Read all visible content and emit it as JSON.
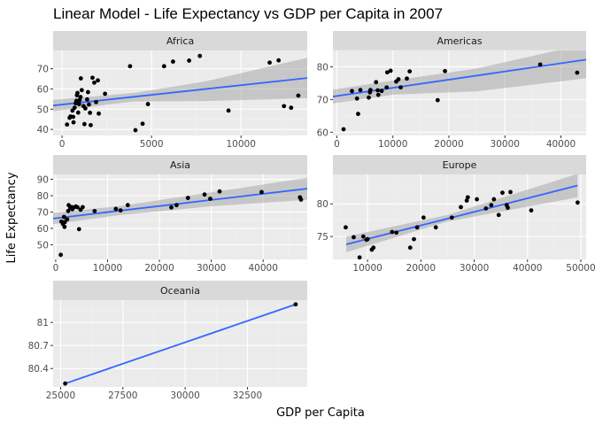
{
  "title": "Linear Model - Life Expectancy vs GDP per Capita in 2007",
  "colors": {
    "panel_bg": "#ebebeb",
    "strip_bg": "#d9d9d9",
    "grid_major": "#ffffff",
    "grid_minor": "#f2f2f2",
    "points": "#000000",
    "fit_line": "#3366ff",
    "ci_band": "#999999"
  },
  "chart_data": [
    {
      "type": "scatter",
      "facet": "Africa",
      "xlabel": "GDP per Capita",
      "ylabel": "Life Expectancy",
      "xlim": [
        -500,
        13700
      ],
      "ylim": [
        37,
        79
      ],
      "xticks": [
        0,
        5000,
        10000
      ],
      "yticks": [
        40,
        50,
        60,
        70
      ],
      "points": [
        [
          277,
          42.4
        ],
        [
          470,
          46.4
        ],
        [
          420,
          45.7
        ],
        [
          580,
          49.3
        ],
        [
          620,
          46.2
        ],
        [
          640,
          43.5
        ],
        [
          700,
          50.7
        ],
        [
          760,
          52.9
        ],
        [
          800,
          54.1
        ],
        [
          830,
          56.9
        ],
        [
          860,
          58.0
        ],
        [
          900,
          48.3
        ],
        [
          950,
          52.5
        ],
        [
          980,
          54.5
        ],
        [
          1030,
          56.0
        ],
        [
          1050,
          65.2
        ],
        [
          1100,
          59.4
        ],
        [
          1200,
          51.5
        ],
        [
          1250,
          42.6
        ],
        [
          1300,
          50.4
        ],
        [
          1400,
          54.8
        ],
        [
          1450,
          58.4
        ],
        [
          1500,
          52.3
        ],
        [
          1560,
          48.2
        ],
        [
          1600,
          42.1
        ],
        [
          1700,
          65.5
        ],
        [
          1800,
          63.1
        ],
        [
          1900,
          53.5
        ],
        [
          2000,
          64.2
        ],
        [
          2050,
          47.8
        ],
        [
          2400,
          57.6
        ],
        [
          3800,
          71.2
        ],
        [
          4100,
          39.6
        ],
        [
          4500,
          42.8
        ],
        [
          4800,
          52.5
        ],
        [
          5700,
          71.2
        ],
        [
          6200,
          73.5
        ],
        [
          7100,
          74.0
        ],
        [
          7700,
          76.3
        ],
        [
          9300,
          49.3
        ],
        [
          11600,
          73.0
        ],
        [
          12100,
          74.1
        ],
        [
          12400,
          51.5
        ],
        [
          12800,
          50.7
        ],
        [
          13200,
          56.7
        ]
      ],
      "fit": {
        "x": [
          -500,
          13700
        ],
        "y": [
          51.8,
          65.4
        ]
      },
      "ci": {
        "x": [
          -500,
          4000,
          8000,
          13700
        ],
        "lower": [
          49.0,
          53.8,
          54.0,
          55.4
        ],
        "upper": [
          54.6,
          58.0,
          63.7,
          75.4
        ]
      }
    },
    {
      "type": "scatter",
      "facet": "Americas",
      "xlabel": "GDP per Capita",
      "ylabel": "Life Expectancy",
      "xlim": [
        -700,
        44500
      ],
      "ylim": [
        59,
        85
      ],
      "xticks": [
        0,
        10000,
        20000,
        30000,
        40000
      ],
      "yticks": [
        60,
        70,
        80
      ],
      "points": [
        [
          1200,
          60.9
        ],
        [
          2700,
          72.6
        ],
        [
          3600,
          70.3
        ],
        [
          3800,
          65.6
        ],
        [
          4200,
          72.9
        ],
        [
          5700,
          70.6
        ],
        [
          5900,
          72.2
        ],
        [
          6000,
          72.9
        ],
        [
          7000,
          75.3
        ],
        [
          7300,
          72.8
        ],
        [
          7400,
          71.4
        ],
        [
          8000,
          72.6
        ],
        [
          8900,
          73.7
        ],
        [
          9000,
          78.3
        ],
        [
          9600,
          78.8
        ],
        [
          10600,
          75.5
        ],
        [
          11000,
          76.2
        ],
        [
          11400,
          73.7
        ],
        [
          12500,
          76.4
        ],
        [
          13000,
          78.6
        ],
        [
          18000,
          69.8
        ],
        [
          19300,
          78.7
        ],
        [
          36300,
          80.7
        ],
        [
          42900,
          78.2
        ]
      ],
      "fit": {
        "x": [
          -700,
          44500
        ],
        "y": [
          70.9,
          82.2
        ]
      },
      "ci": {
        "x": [
          -700,
          10000,
          25000,
          44500
        ],
        "lower": [
          68.8,
          71.5,
          72.5,
          76.5
        ],
        "upper": [
          73.0,
          75.8,
          79.5,
          87.0
        ]
      }
    },
    {
      "type": "scatter",
      "facet": "Asia",
      "xlabel": "GDP per Capita",
      "ylabel": "Life Expectancy",
      "xlim": [
        -500,
        48500
      ],
      "ylim": [
        41,
        93
      ],
      "xticks": [
        0,
        10000,
        20000,
        30000,
        40000
      ],
      "yticks": [
        50,
        60,
        70,
        80,
        90
      ],
      "points": [
        [
          975,
          43.8
        ],
        [
          1100,
          64.1
        ],
        [
          1400,
          62.7
        ],
        [
          1600,
          67.0
        ],
        [
          1700,
          60.9
        ],
        [
          1750,
          63.8
        ],
        [
          2200,
          65.5
        ],
        [
          2400,
          70.6
        ],
        [
          2500,
          74.2
        ],
        [
          2800,
          72.4
        ],
        [
          3100,
          73.0
        ],
        [
          3200,
          71.7
        ],
        [
          3500,
          72.8
        ],
        [
          3900,
          73.4
        ],
        [
          4200,
          72.9
        ],
        [
          4500,
          59.5
        ],
        [
          4800,
          71.4
        ],
        [
          5200,
          73.0
        ],
        [
          7500,
          70.6
        ],
        [
          11600,
          71.9
        ],
        [
          12500,
          71.0
        ],
        [
          13900,
          74.2
        ],
        [
          22300,
          72.8
        ],
        [
          23300,
          74.2
        ],
        [
          25500,
          78.6
        ],
        [
          28700,
          80.7
        ],
        [
          31600,
          82.6
        ],
        [
          29800,
          78.1
        ],
        [
          39700,
          82.2
        ],
        [
          47100,
          79.0
        ],
        [
          47300,
          77.6
        ]
      ],
      "fit": {
        "x": [
          -500,
          48500
        ],
        "y": [
          66.0,
          84.3
        ]
      },
      "ci": {
        "x": [
          -500,
          12000,
          30000,
          48500
        ],
        "lower": [
          62.5,
          68.0,
          73.5,
          77.5
        ],
        "upper": [
          69.5,
          73.5,
          82.0,
          91.0
        ]
      }
    },
    {
      "type": "scatter",
      "facet": "Europe",
      "xlabel": "GDP per Capita",
      "ylabel": "Life Expectancy",
      "xlim": [
        3500,
        51000
      ],
      "ylim": [
        71.5,
        84.5
      ],
      "xticks": [
        10000,
        20000,
        30000,
        40000,
        50000
      ],
      "yticks": [
        75,
        80
      ],
      "points": [
        [
          5900,
          76.4
        ],
        [
          7400,
          74.9
        ],
        [
          8500,
          71.8
        ],
        [
          9200,
          75.0
        ],
        [
          9800,
          74.5
        ],
        [
          10000,
          74.6
        ],
        [
          10800,
          73.0
        ],
        [
          11100,
          73.3
        ],
        [
          14600,
          75.7
        ],
        [
          15400,
          75.6
        ],
        [
          18000,
          73.3
        ],
        [
          18700,
          74.6
        ],
        [
          19300,
          76.4
        ],
        [
          20500,
          77.9
        ],
        [
          22800,
          76.4
        ],
        [
          25800,
          77.9
        ],
        [
          27500,
          79.5
        ],
        [
          28600,
          80.5
        ],
        [
          28800,
          81.0
        ],
        [
          30500,
          80.7
        ],
        [
          32200,
          79.3
        ],
        [
          33200,
          79.8
        ],
        [
          33700,
          80.7
        ],
        [
          34600,
          78.3
        ],
        [
          35300,
          81.7
        ],
        [
          36100,
          79.8
        ],
        [
          36800,
          81.8
        ],
        [
          36300,
          79.4
        ],
        [
          40700,
          79.0
        ],
        [
          49400,
          80.2
        ]
      ],
      "fit": {
        "x": [
          6000,
          49400
        ],
        "y": [
          73.8,
          82.8
        ]
      },
      "ci": {
        "x": [
          6000,
          25000,
          49400
        ],
        "lower": [
          72.6,
          77.3,
          81.0
        ],
        "upper": [
          75.0,
          78.3,
          84.6
        ]
      }
    },
    {
      "type": "scatter",
      "facet": "Oceania",
      "xlabel": "GDP per Capita",
      "ylabel": "Life Expectancy",
      "xlim": [
        24700,
        34900
      ],
      "ylim": [
        80.16,
        81.29
      ],
      "xticks": [
        25000,
        27500,
        30000,
        32500
      ],
      "yticks": [
        80.4,
        80.7,
        81.0
      ],
      "points": [
        [
          25185,
          80.204
        ],
        [
          34435,
          81.235
        ]
      ],
      "fit": {
        "x": [
          25185,
          34435
        ],
        "y": [
          80.204,
          81.235
        ]
      }
    }
  ]
}
